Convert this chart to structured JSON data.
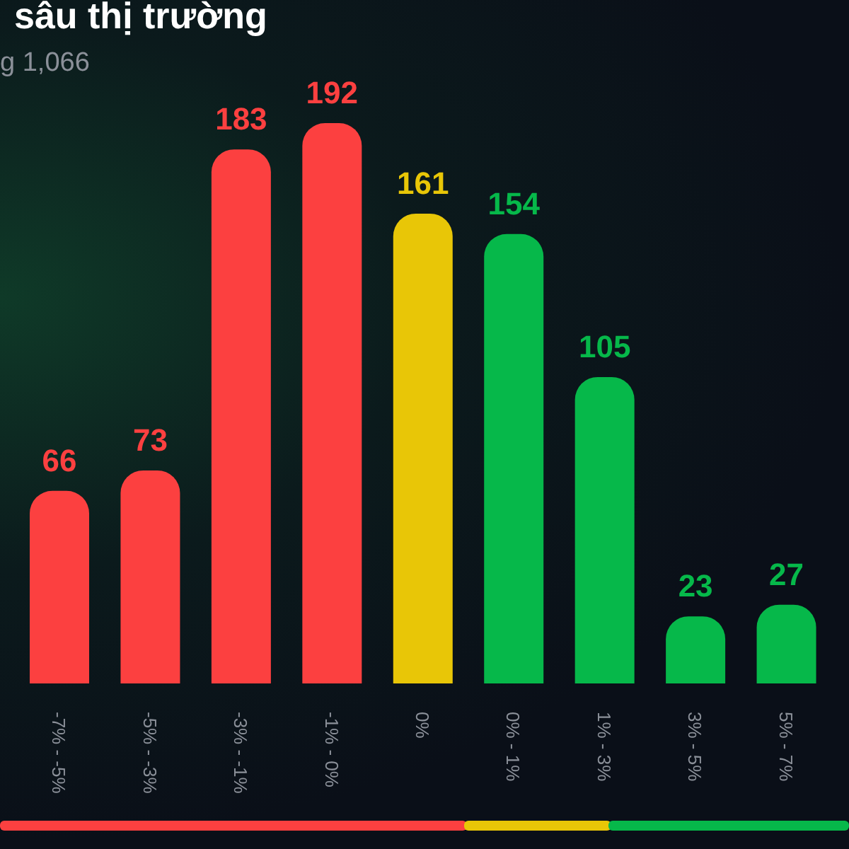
{
  "chart_data": {
    "type": "bar",
    "title": "sâu thị trường",
    "subtitle": "g 1,066",
    "categories": [
      "-7% - -5%",
      "-5% - -3%",
      "-3% - -1%",
      "-1% - 0%",
      "0%",
      "0% - 1%",
      "1% - 3%",
      "3% - 5%",
      "5% - 7%"
    ],
    "values": [
      66,
      73,
      183,
      192,
      161,
      154,
      105,
      23,
      27
    ],
    "colors": [
      "#fc4040",
      "#fc4040",
      "#fc4040",
      "#fc4040",
      "#e8c607",
      "#06b84a",
      "#06b84a",
      "#06b84a",
      "#06b84a"
    ],
    "data_labels": true,
    "grid": false,
    "legend": false
  }
}
